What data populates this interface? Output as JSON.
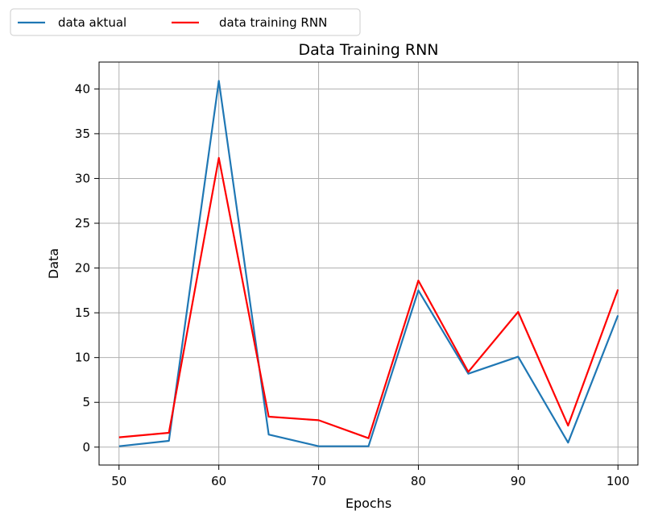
{
  "chart_data": {
    "type": "line",
    "title": "Data Training RNN",
    "xlabel": "Epochs",
    "ylabel": "Data",
    "xlim": [
      48,
      102
    ],
    "ylim": [
      -2,
      43
    ],
    "xticks": [
      50,
      60,
      70,
      80,
      90,
      100
    ],
    "yticks": [
      0,
      5,
      10,
      15,
      20,
      25,
      30,
      35,
      40
    ],
    "grid": true,
    "legend_position": "top-left, above plot, horizontal",
    "x": [
      50,
      55,
      60,
      65,
      70,
      75,
      80,
      85,
      90,
      95,
      100
    ],
    "series": [
      {
        "name": "data aktual",
        "color": "#1f77b4",
        "values": [
          0.1,
          0.7,
          40.9,
          1.4,
          0.1,
          0.1,
          17.5,
          8.2,
          10.1,
          0.5,
          14.7
        ]
      },
      {
        "name": "data training RNN",
        "color": "#ff0000",
        "values": [
          1.1,
          1.6,
          32.3,
          3.4,
          3.0,
          1.0,
          18.6,
          8.4,
          15.1,
          2.4,
          17.6
        ]
      }
    ]
  }
}
